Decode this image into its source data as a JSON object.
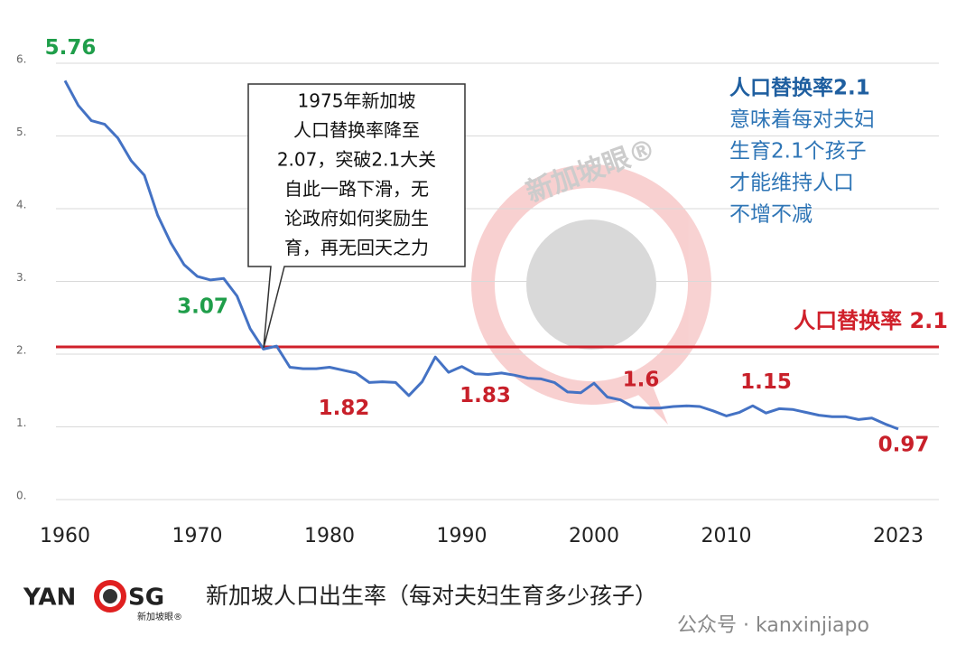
{
  "chart_data": {
    "type": "line",
    "caption": "新加坡人口出生率（每对夫妇生育多少孩子）",
    "x": [
      1960,
      1961,
      1962,
      1963,
      1964,
      1965,
      1966,
      1967,
      1968,
      1969,
      1970,
      1971,
      1972,
      1973,
      1974,
      1975,
      1976,
      1977,
      1978,
      1979,
      1980,
      1981,
      1982,
      1983,
      1984,
      1985,
      1986,
      1987,
      1988,
      1989,
      1990,
      1991,
      1992,
      1993,
      1994,
      1995,
      1996,
      1997,
      1998,
      1999,
      2000,
      2001,
      2002,
      2003,
      2004,
      2005,
      2006,
      2007,
      2008,
      2009,
      2010,
      2011,
      2012,
      2013,
      2014,
      2015,
      2016,
      2017,
      2018,
      2019,
      2020,
      2021,
      2022,
      2023
    ],
    "series": [
      {
        "name": "新加坡人口出生率",
        "color": "#4472c4",
        "values": [
          5.76,
          5.42,
          5.21,
          5.16,
          4.97,
          4.66,
          4.46,
          3.91,
          3.53,
          3.23,
          3.07,
          3.02,
          3.04,
          2.8,
          2.35,
          2.07,
          2.11,
          1.82,
          1.8,
          1.8,
          1.82,
          1.78,
          1.74,
          1.61,
          1.62,
          1.61,
          1.43,
          1.62,
          1.96,
          1.75,
          1.83,
          1.73,
          1.72,
          1.74,
          1.71,
          1.67,
          1.66,
          1.61,
          1.48,
          1.47,
          1.6,
          1.41,
          1.37,
          1.27,
          1.26,
          1.26,
          1.28,
          1.29,
          1.28,
          1.22,
          1.15,
          1.2,
          1.29,
          1.19,
          1.25,
          1.24,
          1.2,
          1.16,
          1.14,
          1.14,
          1.1,
          1.12,
          1.04,
          0.97
        ],
        "value_labels": [
          "5.76",
          null,
          null,
          null,
          null,
          null,
          null,
          null,
          null,
          null,
          "3.07",
          null,
          null,
          null,
          null,
          null,
          null,
          null,
          null,
          null,
          "1.82",
          null,
          null,
          null,
          null,
          null,
          null,
          null,
          null,
          null,
          "1.83",
          null,
          null,
          null,
          null,
          null,
          null,
          null,
          null,
          null,
          "1.6",
          null,
          null,
          null,
          null,
          null,
          null,
          null,
          null,
          null,
          "1.15",
          null,
          null,
          null,
          null,
          null,
          null,
          null,
          null,
          null,
          null,
          null,
          null,
          "0.97"
        ]
      }
    ],
    "xlim": [
      1960,
      2023
    ],
    "xticks": [
      1960,
      1970,
      1980,
      1990,
      2000,
      2010,
      2023
    ],
    "ylim": [
      0,
      6
    ],
    "yticks": [
      {
        "value": 0,
        "label": "0."
      },
      {
        "value": 1,
        "label": "1."
      },
      {
        "value": 2,
        "label": "2."
      },
      {
        "value": 3,
        "label": "3."
      },
      {
        "value": 4,
        "label": "4."
      },
      {
        "value": 5,
        "label": "5."
      },
      {
        "value": 6,
        "label": "6."
      }
    ],
    "grid": true,
    "reference_line": {
      "value": 2.1,
      "label": "人口替换率 2.1",
      "color": "#d0202a"
    },
    "callout": {
      "lines": [
        "1975年新加坡",
        "人口替换率降至",
        "2.07，突破2.1大关",
        "自此一路下滑，无",
        "论政府如何奖励生",
        "育，再无回天之力"
      ]
    },
    "note": {
      "lines": [
        "人口替换率2.1",
        "意味着每对夫妇",
        "生育2.1个孩子",
        "才能维持人口",
        "不增不减"
      ]
    },
    "logo": {
      "left": "YAN",
      "right": "SG",
      "sub": "新加坡眼®"
    },
    "watermark": "新加坡眼®",
    "footer": "公众号 · kanxinjiapo"
  }
}
